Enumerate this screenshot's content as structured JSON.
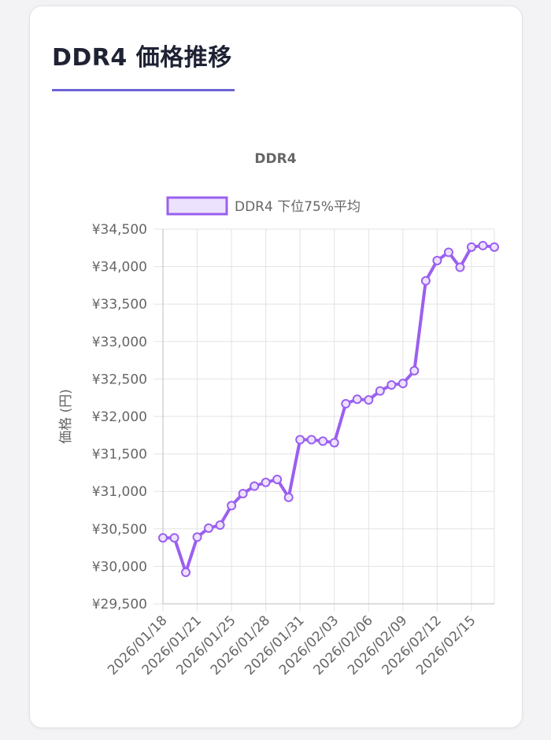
{
  "card": {
    "title": "DDR4 価格推移",
    "accent_color": "#6b63d6"
  },
  "chart_data": {
    "type": "line",
    "title": "DDR4",
    "xlabel": "",
    "ylabel": "価格 (円)",
    "ylim": [
      29500,
      34500
    ],
    "y_ticks": [
      29500,
      30000,
      30500,
      31000,
      31500,
      32000,
      32500,
      33000,
      33500,
      34000,
      34500
    ],
    "y_tick_labels": [
      "¥29,500",
      "¥30,000",
      "¥30,500",
      "¥31,000",
      "¥31,500",
      "¥32,000",
      "¥32,500",
      "¥33,000",
      "¥33,500",
      "¥34,000",
      "¥34,500"
    ],
    "x_tick_labels": [
      "2026/01/18",
      "2026/01/21",
      "2026/01/25",
      "2026/01/28",
      "2026/01/31",
      "2026/02/03",
      "2026/02/06",
      "2026/02/09",
      "2026/02/12",
      "2026/02/15"
    ],
    "x_tick_indices": [
      0,
      3,
      6,
      9,
      12,
      15,
      18,
      21,
      24,
      27
    ],
    "grid": true,
    "legend_position": "top",
    "series": [
      {
        "name": "DDR4 下位75%平均",
        "color": "#9b5ff0",
        "fill": "#ece2fd",
        "values": [
          30380,
          30380,
          29920,
          30390,
          30510,
          30550,
          30810,
          30970,
          31070,
          31120,
          31160,
          30920,
          31690,
          31690,
          31670,
          31650,
          32170,
          32230,
          32220,
          32340,
          32420,
          32440,
          32610,
          33810,
          34080,
          34190,
          33990,
          34260,
          34280,
          34260
        ]
      }
    ]
  }
}
